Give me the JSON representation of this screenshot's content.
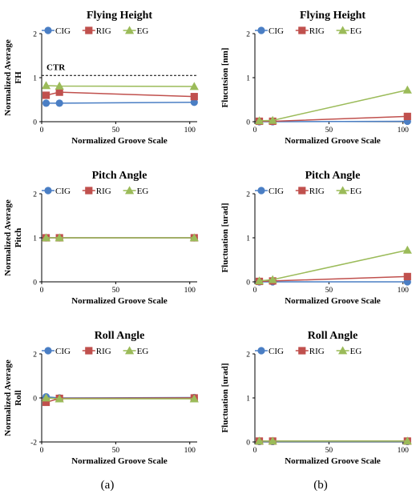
{
  "panel_labels": [
    "(a)",
    "(b)"
  ],
  "legend_labels": [
    "CIG",
    "RIG",
    "EG"
  ],
  "colors": {
    "CIG": "#4a7ec4",
    "RIG": "#c0504d",
    "EG": "#9bbb59",
    "ref": "#000000"
  },
  "chart_data": [
    {
      "type": "line",
      "title": "Flying Height",
      "xlabel": "Normalized Groove Scale",
      "ylabel": [
        "Normalized Average",
        "FH"
      ],
      "xlim": [
        0,
        105
      ],
      "xticks": [
        0,
        50,
        100
      ],
      "ylim": [
        0,
        2
      ],
      "yticks": [
        0,
        1,
        2
      ],
      "x": [
        3,
        12,
        103
      ],
      "series": [
        {
          "name": "CIG",
          "values": [
            0.42,
            0.42,
            0.44
          ]
        },
        {
          "name": "RIG",
          "values": [
            0.6,
            0.67,
            0.57
          ]
        },
        {
          "name": "EG",
          "values": [
            0.82,
            0.81,
            0.8
          ]
        }
      ],
      "ref_line": {
        "y": 1.05,
        "label": "CTR"
      },
      "legend": "top",
      "grid": false
    },
    {
      "type": "line",
      "title": "Flying Height",
      "xlabel": "Normalized Groove Scale",
      "ylabel": [
        "Flucutsion [nm]"
      ],
      "xlim": [
        0,
        105
      ],
      "xticks": [
        0,
        50,
        100
      ],
      "ylim": [
        0,
        2
      ],
      "yticks": [
        0,
        1,
        2
      ],
      "x": [
        3,
        12,
        103
      ],
      "series": [
        {
          "name": "CIG",
          "values": [
            0.0,
            0.0,
            0.01
          ]
        },
        {
          "name": "RIG",
          "values": [
            0.01,
            0.01,
            0.12
          ]
        },
        {
          "name": "EG",
          "values": [
            0.02,
            0.03,
            0.72
          ]
        }
      ],
      "legend": "top",
      "grid": false
    },
    {
      "type": "line",
      "title": "Pitch Angle",
      "xlabel": "Normalized Groove Scale",
      "ylabel": [
        "Normalized Average",
        "Pitch"
      ],
      "xlim": [
        0,
        105
      ],
      "xticks": [
        0,
        50,
        100
      ],
      "ylim": [
        0,
        2
      ],
      "yticks": [
        0,
        1,
        2
      ],
      "x": [
        3,
        12,
        103
      ],
      "series": [
        {
          "name": "CIG",
          "values": [
            1.0,
            1.0,
            1.0
          ]
        },
        {
          "name": "RIG",
          "values": [
            1.0,
            1.0,
            1.0
          ]
        },
        {
          "name": "EG",
          "values": [
            1.0,
            1.0,
            1.0
          ]
        }
      ],
      "ref_line": {
        "y": 1.0,
        "label": ""
      },
      "legend": "top",
      "grid": false
    },
    {
      "type": "line",
      "title": "Pitch Angle",
      "xlabel": "Normalized Groove Scale",
      "ylabel": [
        "Fluctuation [urad]"
      ],
      "xlim": [
        0,
        105
      ],
      "xticks": [
        0,
        50,
        100
      ],
      "ylim": [
        0,
        2
      ],
      "yticks": [
        0,
        1,
        2
      ],
      "x": [
        3,
        12,
        103
      ],
      "series": [
        {
          "name": "CIG",
          "values": [
            0.0,
            0.0,
            0.0
          ]
        },
        {
          "name": "RIG",
          "values": [
            0.01,
            0.02,
            0.12
          ]
        },
        {
          "name": "EG",
          "values": [
            0.02,
            0.05,
            0.72
          ]
        }
      ],
      "legend": "top",
      "grid": false
    },
    {
      "type": "line",
      "title": "Roll Angle",
      "xlabel": "Normalized Groove Scale",
      "ylabel": [
        "Normalized Average",
        "Roll"
      ],
      "xlim": [
        0,
        105
      ],
      "xticks": [
        0,
        50,
        100
      ],
      "ylim": [
        -2,
        2
      ],
      "yticks": [
        -2,
        0,
        2
      ],
      "x": [
        3,
        12,
        103
      ],
      "series": [
        {
          "name": "CIG",
          "values": [
            0.05,
            0.0,
            0.02
          ]
        },
        {
          "name": "RIG",
          "values": [
            -0.2,
            -0.02,
            0.0
          ]
        },
        {
          "name": "EG",
          "values": [
            0.0,
            -0.04,
            -0.04
          ]
        }
      ],
      "ref_line": {
        "y": 0.0,
        "label": ""
      },
      "legend": "top",
      "grid": false
    },
    {
      "type": "line",
      "title": "Roll Angle",
      "xlabel": "Normalized Groove Scale",
      "ylabel": [
        "Fluctuation [urad]"
      ],
      "xlim": [
        0,
        105
      ],
      "xticks": [
        0,
        50,
        100
      ],
      "ylim": [
        0,
        2
      ],
      "yticks": [
        0,
        1,
        2
      ],
      "x": [
        3,
        12,
        103
      ],
      "series": [
        {
          "name": "CIG",
          "values": [
            0.01,
            0.01,
            0.01
          ]
        },
        {
          "name": "RIG",
          "values": [
            0.02,
            0.02,
            0.02
          ]
        },
        {
          "name": "EG",
          "values": [
            0.02,
            0.02,
            0.02
          ]
        }
      ],
      "legend": "top",
      "grid": false
    }
  ]
}
